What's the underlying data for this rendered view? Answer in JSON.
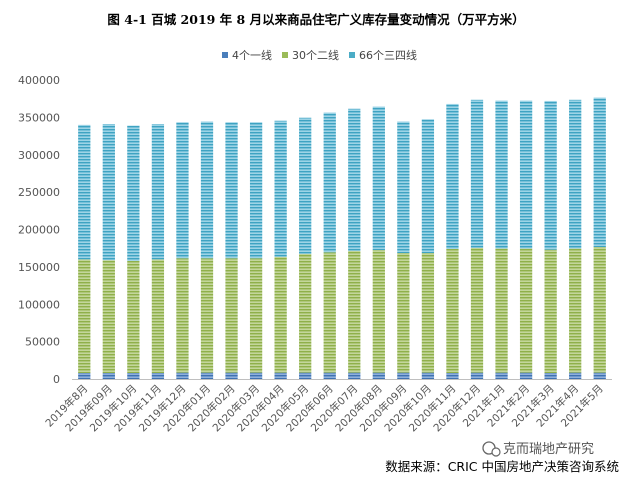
{
  "chart_data": {
    "type": "bar",
    "stacked": true,
    "title": "图 4-1  百城 2019 年 8 月以来商品住宅广义库存量变动情况（万平方米）",
    "xlabel": "",
    "ylabel": "",
    "ylim": [
      0,
      400000
    ],
    "yticks": [
      0,
      50000,
      100000,
      150000,
      200000,
      250000,
      300000,
      350000,
      400000
    ],
    "grid": false,
    "legend_position": "top",
    "categories": [
      "2019年8月",
      "2019年09月",
      "2019年10月",
      "2019年11月",
      "2019年12月",
      "2020年01月",
      "2020年02月",
      "2020年03月",
      "2020年04月",
      "2020年05月",
      "2020年06月",
      "2020年07月",
      "2020年08月",
      "2020年09月",
      "2020年10月",
      "2020年11月",
      "2020年12月",
      "2021年1月",
      "2021年2月",
      "2021年3月",
      "2021年4月",
      "2021年5月"
    ],
    "series": [
      {
        "name": "4个一线",
        "color": "#4a7ebb",
        "values": [
          8000,
          8000,
          8000,
          8000,
          8500,
          8500,
          8500,
          8500,
          8500,
          8500,
          8500,
          8500,
          8500,
          8500,
          8500,
          8000,
          8500,
          8500,
          8500,
          8000,
          8500,
          8500
        ]
      },
      {
        "name": "30个二线",
        "color": "#9bbb59",
        "values": [
          152000,
          151000,
          150000,
          152000,
          153000,
          153000,
          153000,
          153000,
          155000,
          159000,
          161000,
          163000,
          164000,
          160000,
          160000,
          166000,
          167000,
          166000,
          166000,
          165000,
          166000,
          168000
        ]
      },
      {
        "name": "66个三四线",
        "color": "#4bacc6",
        "values": [
          180000,
          182000,
          181000,
          181000,
          182000,
          183000,
          182000,
          182000,
          182000,
          182000,
          187000,
          190000,
          192000,
          176000,
          179000,
          194000,
          198000,
          198000,
          198000,
          199000,
          199000,
          200000
        ]
      }
    ]
  },
  "footer": {
    "source": "数据来源：CRIC 中国房地产决策咨询系统",
    "watermark": "克而瑞地产研究"
  }
}
